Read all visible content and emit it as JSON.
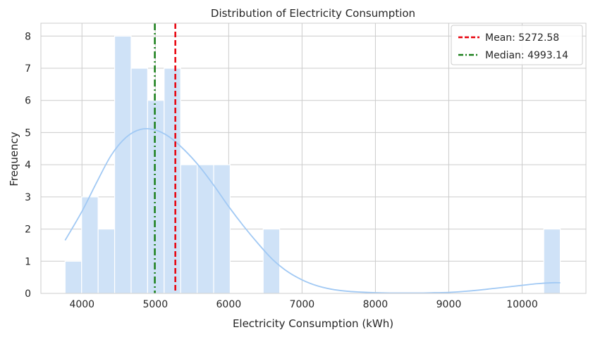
{
  "chart_data": {
    "type": "histogram",
    "title": "Distribution of Electricity Consumption",
    "xlabel": "Electricity Consumption (kWh)",
    "ylabel": "Frequency",
    "xlim": [
      3440,
      10870
    ],
    "ylim": [
      0,
      8.4
    ],
    "xticks": [
      4000,
      5000,
      6000,
      7000,
      8000,
      9000,
      10000
    ],
    "yticks": [
      0,
      1,
      2,
      3,
      4,
      5,
      6,
      7,
      8
    ],
    "grid": true,
    "legend_position": "top-right",
    "bins": [
      {
        "x0": 3770,
        "x1": 3995,
        "count": 1
      },
      {
        "x0": 3995,
        "x1": 4220,
        "count": 3
      },
      {
        "x0": 4220,
        "x1": 4445,
        "count": 2
      },
      {
        "x0": 4445,
        "x1": 4670,
        "count": 8
      },
      {
        "x0": 4670,
        "x1": 4895,
        "count": 7
      },
      {
        "x0": 4895,
        "x1": 5120,
        "count": 6
      },
      {
        "x0": 5120,
        "x1": 5345,
        "count": 7
      },
      {
        "x0": 5345,
        "x1": 5570,
        "count": 4
      },
      {
        "x0": 5570,
        "x1": 5795,
        "count": 4
      },
      {
        "x0": 5795,
        "x1": 6020,
        "count": 4
      },
      {
        "x0": 6470,
        "x1": 6695,
        "count": 2
      },
      {
        "x0": 10295,
        "x1": 10520,
        "count": 2
      }
    ],
    "kde": {
      "x": [
        3770,
        4000,
        4200,
        4400,
        4600,
        4800,
        5000,
        5200,
        5400,
        5600,
        5800,
        6000,
        6200,
        6400,
        6600,
        6800,
        7000,
        7200,
        7400,
        7600,
        7800,
        8000,
        8200,
        8400,
        8600,
        8800,
        9000,
        9200,
        9400,
        9600,
        9800,
        10000,
        10200,
        10400,
        10520
      ],
      "y": [
        1.65,
        2.55,
        3.45,
        4.3,
        4.85,
        5.1,
        5.08,
        4.85,
        4.45,
        3.95,
        3.35,
        2.7,
        2.1,
        1.55,
        1.05,
        0.68,
        0.42,
        0.24,
        0.13,
        0.07,
        0.04,
        0.02,
        0.01,
        0.01,
        0.01,
        0.02,
        0.03,
        0.06,
        0.1,
        0.15,
        0.2,
        0.25,
        0.3,
        0.33,
        0.33
      ]
    },
    "series": [
      {
        "name": "Mean: 5272.58",
        "value": 5272.58,
        "color": "#e8000b",
        "style": "dashed"
      },
      {
        "name": "Median: 4993.14",
        "value": 4993.14,
        "color": "#1a7f1a",
        "style": "dashdot"
      }
    ],
    "colors": {
      "bar_fill": "#cfe2f7",
      "bar_edge": "#ffffff",
      "kde_line": "#a1c9f4",
      "grid": "#cccccc",
      "axes_edge": "#cccccc"
    }
  }
}
